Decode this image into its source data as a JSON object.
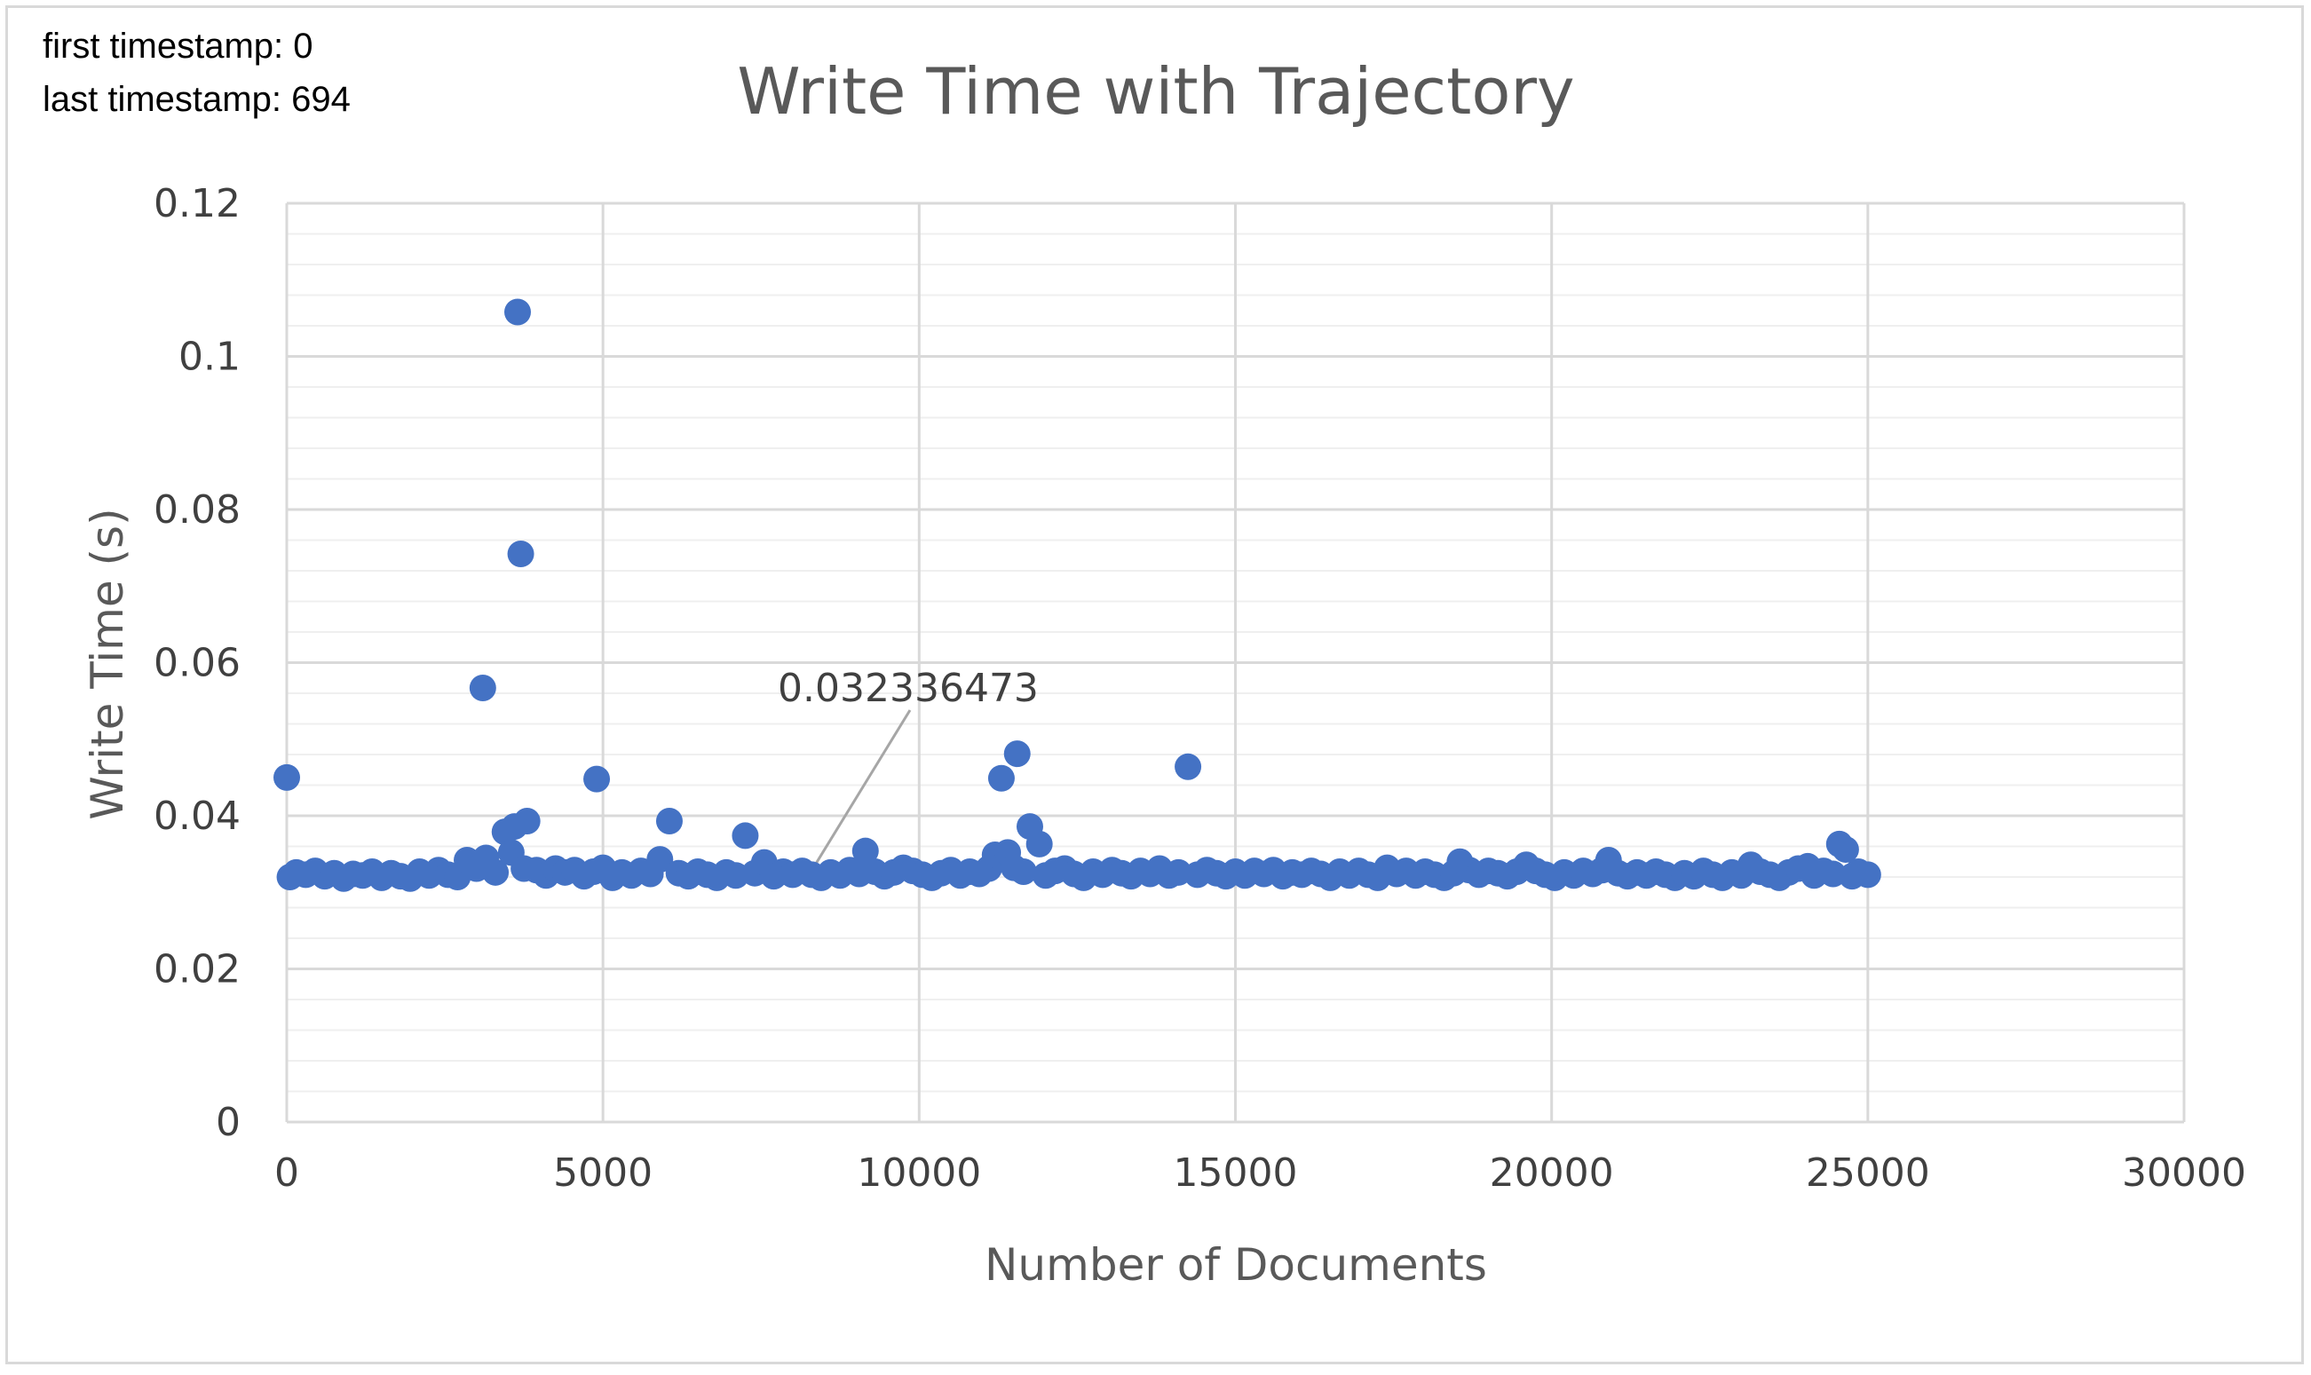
{
  "notes": {
    "first_timestamp": "first timestamp: 0",
    "last_timestamp": "last timestamp: 694"
  },
  "colors": {
    "marker": "#4472C4",
    "grid_major": "#d9d9d9",
    "grid_minor": "#efefef",
    "annotation_line": "#a6a6a6"
  },
  "chart_data": {
    "type": "scatter",
    "title": "Write Time with Trajectory",
    "xlabel": "Number of Documents",
    "ylabel": "Write Time (s)",
    "xlim": [
      0,
      30000
    ],
    "ylim": [
      0,
      0.12
    ],
    "x_ticks": [
      "0",
      "5000",
      "10000",
      "15000",
      "20000",
      "25000",
      "30000"
    ],
    "y_ticks": [
      "0",
      "0.02",
      "0.04",
      "0.06",
      "0.08",
      "0.1",
      "0.12"
    ],
    "x_tick_values": [
      0,
      5000,
      10000,
      15000,
      20000,
      25000,
      30000
    ],
    "y_tick_values": [
      0,
      0.02,
      0.04,
      0.06,
      0.08,
      0.1,
      0.12
    ],
    "grid": true,
    "minor_grid": true,
    "legend": "none",
    "annotation": {
      "text": "0.032336473",
      "point": [
        8300,
        0.0323
      ]
    },
    "series": [
      {
        "points": [
          [
            0,
            0.045
          ],
          [
            50,
            0.032
          ],
          [
            150,
            0.0326
          ],
          [
            300,
            0.0323
          ],
          [
            450,
            0.0328
          ],
          [
            600,
            0.0321
          ],
          [
            750,
            0.0325
          ],
          [
            900,
            0.0318
          ],
          [
            1050,
            0.0324
          ],
          [
            1200,
            0.0322
          ],
          [
            1350,
            0.0327
          ],
          [
            1500,
            0.0319
          ],
          [
            1650,
            0.0325
          ],
          [
            1800,
            0.0321
          ],
          [
            1950,
            0.0318
          ],
          [
            2100,
            0.0327
          ],
          [
            2250,
            0.0322
          ],
          [
            2400,
            0.0329
          ],
          [
            2550,
            0.0323
          ],
          [
            2700,
            0.032
          ],
          [
            2850,
            0.0342
          ],
          [
            3000,
            0.0331
          ],
          [
            3100,
            0.0567
          ],
          [
            3150,
            0.0345
          ],
          [
            3300,
            0.0326
          ],
          [
            3450,
            0.0379
          ],
          [
            3550,
            0.0352
          ],
          [
            3600,
            0.0386
          ],
          [
            3650,
            0.1058
          ],
          [
            3700,
            0.0742
          ],
          [
            3750,
            0.0331
          ],
          [
            3800,
            0.0393
          ],
          [
            3950,
            0.0329
          ],
          [
            4100,
            0.0322
          ],
          [
            4250,
            0.0331
          ],
          [
            4400,
            0.0326
          ],
          [
            4550,
            0.0329
          ],
          [
            4700,
            0.0321
          ],
          [
            4850,
            0.0327
          ],
          [
            4900,
            0.0448
          ],
          [
            5000,
            0.0332
          ],
          [
            5150,
            0.0319
          ],
          [
            5300,
            0.0326
          ],
          [
            5450,
            0.0322
          ],
          [
            5600,
            0.0328
          ],
          [
            5750,
            0.0324
          ],
          [
            5900,
            0.0343
          ],
          [
            6050,
            0.0393
          ],
          [
            6200,
            0.0325
          ],
          [
            6350,
            0.0321
          ],
          [
            6500,
            0.0327
          ],
          [
            6650,
            0.0323
          ],
          [
            6800,
            0.0319
          ],
          [
            6950,
            0.0326
          ],
          [
            7100,
            0.0322
          ],
          [
            7250,
            0.0374
          ],
          [
            7400,
            0.0325
          ],
          [
            7550,
            0.0339
          ],
          [
            7700,
            0.0321
          ],
          [
            7850,
            0.0327
          ],
          [
            8000,
            0.0323
          ],
          [
            8150,
            0.0328
          ],
          [
            8300,
            0.0323
          ],
          [
            8450,
            0.0319
          ],
          [
            8600,
            0.0326
          ],
          [
            8750,
            0.0322
          ],
          [
            8900,
            0.0329
          ],
          [
            9050,
            0.0324
          ],
          [
            9150,
            0.0354
          ],
          [
            9300,
            0.0327
          ],
          [
            9450,
            0.0321
          ],
          [
            9600,
            0.0326
          ],
          [
            9750,
            0.0332
          ],
          [
            9900,
            0.0328
          ],
          [
            10050,
            0.0323
          ],
          [
            10200,
            0.0319
          ],
          [
            10350,
            0.0325
          ],
          [
            10500,
            0.0329
          ],
          [
            10650,
            0.0322
          ],
          [
            10800,
            0.0327
          ],
          [
            10950,
            0.0324
          ],
          [
            11100,
            0.0331
          ],
          [
            11200,
            0.0349
          ],
          [
            11300,
            0.0449
          ],
          [
            11400,
            0.0352
          ],
          [
            11500,
            0.0332
          ],
          [
            11550,
            0.0481
          ],
          [
            11650,
            0.0327
          ],
          [
            11750,
            0.0386
          ],
          [
            11900,
            0.0363
          ],
          [
            12000,
            0.0322
          ],
          [
            12150,
            0.0328
          ],
          [
            12300,
            0.0331
          ],
          [
            12450,
            0.0324
          ],
          [
            12600,
            0.0319
          ],
          [
            12750,
            0.0327
          ],
          [
            12900,
            0.0323
          ],
          [
            13050,
            0.0329
          ],
          [
            13200,
            0.0325
          ],
          [
            13350,
            0.0321
          ],
          [
            13500,
            0.0328
          ],
          [
            13650,
            0.0324
          ],
          [
            13800,
            0.0331
          ],
          [
            13950,
            0.0322
          ],
          [
            14100,
            0.0326
          ],
          [
            14250,
            0.0464
          ],
          [
            14400,
            0.0323
          ],
          [
            14550,
            0.0329
          ],
          [
            14700,
            0.0325
          ],
          [
            14850,
            0.0321
          ],
          [
            15000,
            0.0327
          ],
          [
            15150,
            0.0322
          ],
          [
            15300,
            0.0328
          ],
          [
            15450,
            0.0324
          ],
          [
            15600,
            0.0329
          ],
          [
            15750,
            0.0321
          ],
          [
            15900,
            0.0326
          ],
          [
            16050,
            0.0323
          ],
          [
            16200,
            0.0328
          ],
          [
            16350,
            0.0324
          ],
          [
            16500,
            0.0319
          ],
          [
            16650,
            0.0327
          ],
          [
            16800,
            0.0322
          ],
          [
            16950,
            0.0328
          ],
          [
            17100,
            0.0323
          ],
          [
            17250,
            0.0319
          ],
          [
            17400,
            0.0332
          ],
          [
            17550,
            0.0324
          ],
          [
            17700,
            0.0328
          ],
          [
            17850,
            0.0322
          ],
          [
            18000,
            0.0327
          ],
          [
            18150,
            0.0323
          ],
          [
            18300,
            0.0319
          ],
          [
            18450,
            0.0325
          ],
          [
            18550,
            0.034
          ],
          [
            18700,
            0.0329
          ],
          [
            18850,
            0.0323
          ],
          [
            19000,
            0.0328
          ],
          [
            19150,
            0.0325
          ],
          [
            19300,
            0.0321
          ],
          [
            19450,
            0.0327
          ],
          [
            19600,
            0.0336
          ],
          [
            19750,
            0.0328
          ],
          [
            19900,
            0.0323
          ],
          [
            20050,
            0.0319
          ],
          [
            20200,
            0.0326
          ],
          [
            20350,
            0.0322
          ],
          [
            20500,
            0.0328
          ],
          [
            20650,
            0.0324
          ],
          [
            20800,
            0.0329
          ],
          [
            20900,
            0.0342
          ],
          [
            21050,
            0.0325
          ],
          [
            21200,
            0.0321
          ],
          [
            21350,
            0.0326
          ],
          [
            21500,
            0.0322
          ],
          [
            21650,
            0.0327
          ],
          [
            21800,
            0.0323
          ],
          [
            21950,
            0.0319
          ],
          [
            22100,
            0.0325
          ],
          [
            22250,
            0.0321
          ],
          [
            22400,
            0.0328
          ],
          [
            22550,
            0.0323
          ],
          [
            22700,
            0.0319
          ],
          [
            22850,
            0.0326
          ],
          [
            23000,
            0.0322
          ],
          [
            23150,
            0.0336
          ],
          [
            23300,
            0.0327
          ],
          [
            23450,
            0.0323
          ],
          [
            23600,
            0.0319
          ],
          [
            23750,
            0.0326
          ],
          [
            23900,
            0.0331
          ],
          [
            24050,
            0.0334
          ],
          [
            24150,
            0.0322
          ],
          [
            24300,
            0.0328
          ],
          [
            24450,
            0.0324
          ],
          [
            24550,
            0.0363
          ],
          [
            24650,
            0.0356
          ],
          [
            24750,
            0.0321
          ],
          [
            24850,
            0.0327
          ],
          [
            25000,
            0.0323
          ]
        ]
      }
    ]
  }
}
